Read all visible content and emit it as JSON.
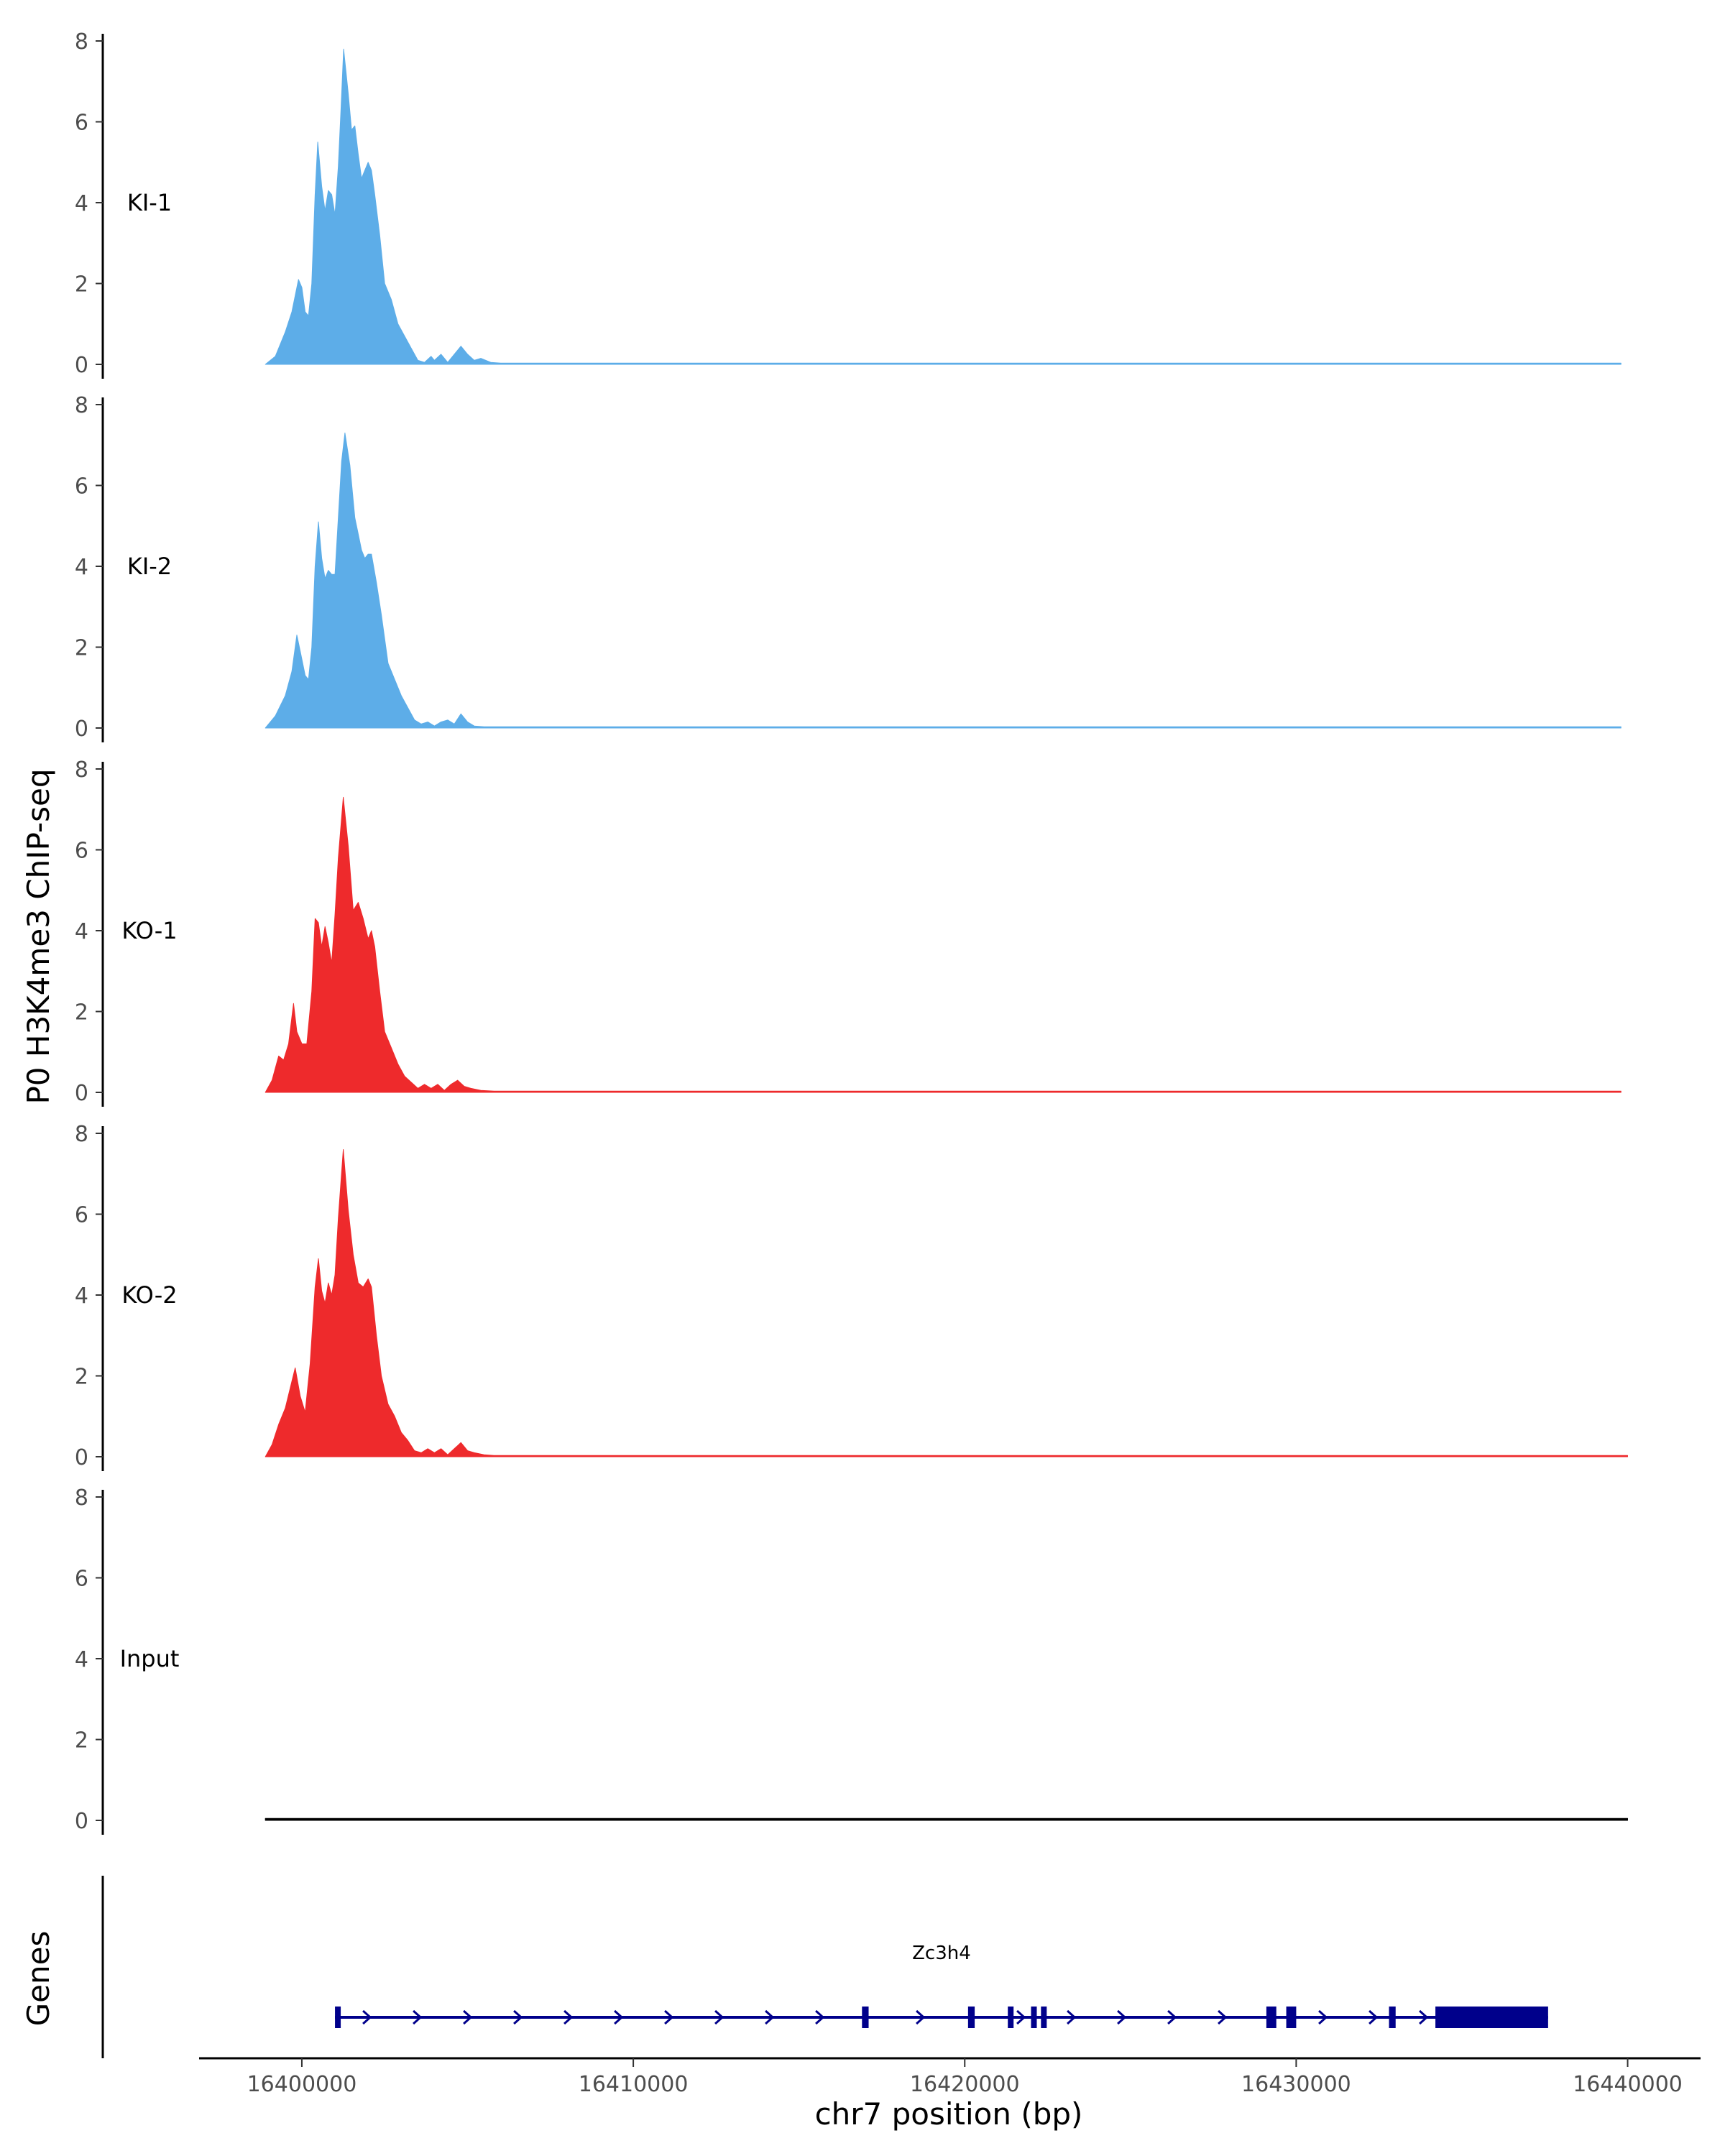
{
  "chart_data": {
    "type": "area",
    "ylabel": "P0 H3K4me3 ChIP-seq",
    "xlabel": "chr7 position (bp)",
    "genes_label": "Genes",
    "chromosome": "chr7",
    "xlim": [
      16396900,
      16442200
    ],
    "ylim": [
      0,
      8
    ],
    "y_ticks": [
      0,
      2,
      4,
      6,
      8
    ],
    "x_ticks": [
      16400000,
      16410000,
      16420000,
      16430000,
      16440000
    ],
    "x_tick_labels": [
      "16400000",
      "16410000",
      "16420000",
      "16430000",
      "16440000"
    ],
    "grid": false,
    "legend": "none",
    "tracks": [
      {
        "name": "KI-1",
        "color": "#5dade8",
        "points": [
          [
            16398900,
            0
          ],
          [
            16399200,
            0.2
          ],
          [
            16399500,
            0.8
          ],
          [
            16399700,
            1.3
          ],
          [
            16399800,
            1.7
          ],
          [
            16399900,
            2.1
          ],
          [
            16400000,
            1.9
          ],
          [
            16400100,
            1.3
          ],
          [
            16400200,
            1.2
          ],
          [
            16400300,
            2.0
          ],
          [
            16400400,
            4.2
          ],
          [
            16400480,
            5.5
          ],
          [
            16400600,
            4.4
          ],
          [
            16400700,
            3.8
          ],
          [
            16400800,
            4.3
          ],
          [
            16400900,
            4.2
          ],
          [
            16401000,
            3.7
          ],
          [
            16401100,
            4.9
          ],
          [
            16401180,
            6.3
          ],
          [
            16401260,
            7.8
          ],
          [
            16401400,
            6.7
          ],
          [
            16401500,
            5.8
          ],
          [
            16401600,
            5.9
          ],
          [
            16401700,
            5.2
          ],
          [
            16401800,
            4.6
          ],
          [
            16401900,
            4.8
          ],
          [
            16402000,
            5.0
          ],
          [
            16402100,
            4.8
          ],
          [
            16402200,
            4.2
          ],
          [
            16402350,
            3.2
          ],
          [
            16402500,
            2.0
          ],
          [
            16402700,
            1.6
          ],
          [
            16402900,
            1.0
          ],
          [
            16403100,
            0.7
          ],
          [
            16403300,
            0.4
          ],
          [
            16403500,
            0.1
          ],
          [
            16403700,
            0.05
          ],
          [
            16403900,
            0.2
          ],
          [
            16404000,
            0.1
          ],
          [
            16404200,
            0.25
          ],
          [
            16404400,
            0.05
          ],
          [
            16404600,
            0.25
          ],
          [
            16404800,
            0.45
          ],
          [
            16405000,
            0.25
          ],
          [
            16405200,
            0.1
          ],
          [
            16405400,
            0.15
          ],
          [
            16405700,
            0.05
          ],
          [
            16406000,
            0.03
          ],
          [
            16439800,
            0.03
          ],
          [
            16439800,
            0
          ]
        ]
      },
      {
        "name": "KI-2",
        "color": "#5dade8",
        "points": [
          [
            16398900,
            0
          ],
          [
            16399200,
            0.3
          ],
          [
            16399500,
            0.8
          ],
          [
            16399700,
            1.4
          ],
          [
            16399850,
            2.3
          ],
          [
            16399950,
            1.9
          ],
          [
            16400100,
            1.3
          ],
          [
            16400200,
            1.2
          ],
          [
            16400300,
            2.0
          ],
          [
            16400400,
            4.0
          ],
          [
            16400500,
            5.1
          ],
          [
            16400600,
            4.2
          ],
          [
            16400700,
            3.7
          ],
          [
            16400800,
            3.9
          ],
          [
            16400900,
            3.8
          ],
          [
            16401000,
            3.8
          ],
          [
            16401100,
            5.2
          ],
          [
            16401200,
            6.6
          ],
          [
            16401300,
            7.3
          ],
          [
            16401450,
            6.5
          ],
          [
            16401600,
            5.2
          ],
          [
            16401700,
            4.8
          ],
          [
            16401800,
            4.4
          ],
          [
            16401900,
            4.2
          ],
          [
            16402000,
            4.3
          ],
          [
            16402100,
            4.3
          ],
          [
            16402250,
            3.6
          ],
          [
            16402400,
            2.8
          ],
          [
            16402600,
            1.6
          ],
          [
            16402800,
            1.2
          ],
          [
            16403000,
            0.8
          ],
          [
            16403200,
            0.5
          ],
          [
            16403400,
            0.2
          ],
          [
            16403600,
            0.1
          ],
          [
            16403800,
            0.15
          ],
          [
            16404000,
            0.05
          ],
          [
            16404200,
            0.15
          ],
          [
            16404400,
            0.2
          ],
          [
            16404600,
            0.1
          ],
          [
            16404800,
            0.35
          ],
          [
            16405000,
            0.15
          ],
          [
            16405200,
            0.05
          ],
          [
            16405500,
            0.03
          ],
          [
            16439800,
            0.03
          ],
          [
            16439800,
            0
          ]
        ]
      },
      {
        "name": "KO-1",
        "color": "#ee2a2c",
        "points": [
          [
            16398900,
            0
          ],
          [
            16399100,
            0.3
          ],
          [
            16399300,
            0.9
          ],
          [
            16399450,
            0.8
          ],
          [
            16399600,
            1.2
          ],
          [
            16399750,
            2.2
          ],
          [
            16399850,
            1.5
          ],
          [
            16400000,
            1.2
          ],
          [
            16400150,
            1.2
          ],
          [
            16400300,
            2.5
          ],
          [
            16400400,
            4.3
          ],
          [
            16400500,
            4.2
          ],
          [
            16400600,
            3.6
          ],
          [
            16400700,
            4.1
          ],
          [
            16400800,
            3.7
          ],
          [
            16400900,
            3.2
          ],
          [
            16401000,
            4.4
          ],
          [
            16401100,
            5.8
          ],
          [
            16401250,
            7.3
          ],
          [
            16401400,
            6.1
          ],
          [
            16401550,
            4.5
          ],
          [
            16401700,
            4.7
          ],
          [
            16401850,
            4.3
          ],
          [
            16402000,
            3.8
          ],
          [
            16402100,
            4.0
          ],
          [
            16402200,
            3.6
          ],
          [
            16402350,
            2.5
          ],
          [
            16402500,
            1.5
          ],
          [
            16402700,
            1.1
          ],
          [
            16402900,
            0.7
          ],
          [
            16403100,
            0.4
          ],
          [
            16403300,
            0.25
          ],
          [
            16403500,
            0.1
          ],
          [
            16403700,
            0.2
          ],
          [
            16403900,
            0.1
          ],
          [
            16404100,
            0.2
          ],
          [
            16404300,
            0.05
          ],
          [
            16404500,
            0.2
          ],
          [
            16404700,
            0.3
          ],
          [
            16404900,
            0.15
          ],
          [
            16405100,
            0.1
          ],
          [
            16405400,
            0.05
          ],
          [
            16405800,
            0.03
          ],
          [
            16439800,
            0.03
          ],
          [
            16439800,
            0
          ]
        ]
      },
      {
        "name": "KO-2",
        "color": "#ee2a2c",
        "points": [
          [
            16398900,
            0
          ],
          [
            16399100,
            0.3
          ],
          [
            16399300,
            0.8
          ],
          [
            16399500,
            1.2
          ],
          [
            16399650,
            1.7
          ],
          [
            16399800,
            2.2
          ],
          [
            16399950,
            1.5
          ],
          [
            16400100,
            1.1
          ],
          [
            16400250,
            2.3
          ],
          [
            16400400,
            4.2
          ],
          [
            16400500,
            4.9
          ],
          [
            16400600,
            4.1
          ],
          [
            16400700,
            3.8
          ],
          [
            16400800,
            4.3
          ],
          [
            16400900,
            4.0
          ],
          [
            16401000,
            4.5
          ],
          [
            16401100,
            5.9
          ],
          [
            16401250,
            7.6
          ],
          [
            16401400,
            6.1
          ],
          [
            16401550,
            5.0
          ],
          [
            16401700,
            4.3
          ],
          [
            16401850,
            4.2
          ],
          [
            16402000,
            4.4
          ],
          [
            16402100,
            4.2
          ],
          [
            16402250,
            3.0
          ],
          [
            16402400,
            2.0
          ],
          [
            16402600,
            1.3
          ],
          [
            16402800,
            1.0
          ],
          [
            16403000,
            0.6
          ],
          [
            16403200,
            0.4
          ],
          [
            16403400,
            0.15
          ],
          [
            16403600,
            0.1
          ],
          [
            16403800,
            0.2
          ],
          [
            16404000,
            0.1
          ],
          [
            16404200,
            0.2
          ],
          [
            16404400,
            0.05
          ],
          [
            16404600,
            0.2
          ],
          [
            16404800,
            0.35
          ],
          [
            16405000,
            0.15
          ],
          [
            16405200,
            0.1
          ],
          [
            16405500,
            0.05
          ],
          [
            16405800,
            0.03
          ],
          [
            16440000,
            0.03
          ],
          [
            16440000,
            0
          ]
        ]
      },
      {
        "name": "Input",
        "color": "#000000",
        "points": [
          [
            16398900,
            0
          ],
          [
            16398900,
            0.05
          ],
          [
            16440000,
            0.05
          ],
          [
            16440000,
            0
          ]
        ]
      }
    ],
    "gene": {
      "name": "Zc3h4",
      "color": "#00008b",
      "start": 16401000,
      "end": 16437600,
      "exons": [
        [
          16401000,
          16401100
        ],
        [
          16416900,
          16417100
        ],
        [
          16420100,
          16420300
        ],
        [
          16421300,
          16421400
        ],
        [
          16422000,
          16422100
        ],
        [
          16422300,
          16422400
        ],
        [
          16429100,
          16429400
        ],
        [
          16429700,
          16430000
        ],
        [
          16432800,
          16433000
        ],
        [
          16434200,
          16437600
        ]
      ]
    }
  }
}
